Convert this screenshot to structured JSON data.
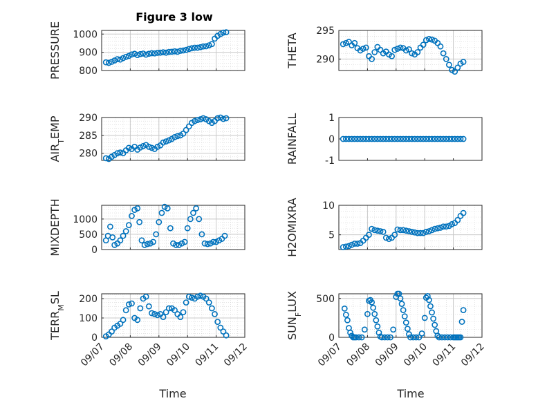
{
  "figure": {
    "title": "Figure 3 low",
    "xlabel": "Time"
  },
  "colors": {
    "marker": "#0072BD",
    "axis": "#262626",
    "grid": "#c8c8c8"
  },
  "chart_data": [
    {
      "type": "scatter",
      "ylabel": "PRESSURE",
      "ylim": [
        800,
        1020
      ],
      "yticks": [
        800,
        900,
        1000
      ],
      "xlim": [
        0,
        5
      ],
      "grid": true,
      "show_xticks": false,
      "title": "Figure 3 low",
      "x": [
        0.15,
        0.25,
        0.35,
        0.45,
        0.55,
        0.65,
        0.75,
        0.85,
        0.95,
        1.05,
        1.15,
        1.25,
        1.35,
        1.45,
        1.55,
        1.65,
        1.75,
        1.85,
        1.95,
        2.05,
        2.15,
        2.25,
        2.35,
        2.45,
        2.55,
        2.65,
        2.75,
        2.85,
        2.95,
        3.05,
        3.15,
        3.25,
        3.35,
        3.45,
        3.55,
        3.65,
        3.75,
        3.85,
        3.95,
        4.05,
        4.15,
        4.25,
        4.35
      ],
      "y": [
        845,
        842,
        848,
        855,
        862,
        860,
        868,
        875,
        880,
        888,
        892,
        885,
        890,
        893,
        887,
        892,
        895,
        894,
        897,
        898,
        900,
        898,
        902,
        903,
        905,
        903,
        908,
        910,
        913,
        918,
        922,
        925,
        925,
        928,
        932,
        933,
        938,
        945,
        975,
        990,
        1000,
        1008,
        1010
      ]
    },
    {
      "type": "scatter",
      "ylabel": "THETA",
      "ylim": [
        288,
        295
      ],
      "yticks": [
        290,
        295
      ],
      "xlim": [
        0,
        5
      ],
      "grid": true,
      "show_xticks": false,
      "x": [
        0.15,
        0.25,
        0.35,
        0.45,
        0.55,
        0.65,
        0.75,
        0.85,
        0.95,
        1.05,
        1.15,
        1.25,
        1.35,
        1.45,
        1.55,
        1.65,
        1.75,
        1.85,
        1.95,
        2.05,
        2.15,
        2.25,
        2.35,
        2.45,
        2.55,
        2.65,
        2.75,
        2.85,
        2.95,
        3.05,
        3.15,
        3.25,
        3.35,
        3.45,
        3.55,
        3.65,
        3.75,
        3.85,
        3.95,
        4.05,
        4.15,
        4.25,
        4.35
      ],
      "y": [
        292.6,
        292.8,
        293.0,
        292.4,
        292.8,
        291.9,
        291.5,
        291.8,
        292.0,
        290.5,
        290.0,
        291.2,
        292.1,
        291.6,
        291.0,
        291.3,
        290.8,
        290.5,
        291.6,
        291.8,
        292.0,
        291.9,
        291.5,
        291.7,
        291.0,
        290.8,
        291.2,
        292.0,
        292.5,
        293.3,
        293.5,
        293.4,
        293.2,
        292.8,
        292.2,
        291.0,
        290.0,
        289.0,
        288.1,
        287.8,
        288.5,
        289.2,
        289.5
      ]
    },
    {
      "type": "scatter",
      "ylabel": "AIR_TEMP",
      "ylim": [
        278,
        290
      ],
      "yticks": [
        280,
        285,
        290
      ],
      "xlim": [
        0,
        5
      ],
      "grid": true,
      "show_xticks": false,
      "x": [
        0.15,
        0.25,
        0.35,
        0.45,
        0.55,
        0.65,
        0.75,
        0.85,
        0.95,
        1.05,
        1.15,
        1.25,
        1.35,
        1.45,
        1.55,
        1.65,
        1.75,
        1.85,
        1.95,
        2.05,
        2.15,
        2.25,
        2.35,
        2.45,
        2.55,
        2.65,
        2.75,
        2.85,
        2.95,
        3.05,
        3.15,
        3.25,
        3.35,
        3.45,
        3.55,
        3.65,
        3.75,
        3.85,
        3.95,
        4.05,
        4.15,
        4.25,
        4.35
      ],
      "y": [
        278.6,
        278.4,
        279.0,
        279.5,
        280.0,
        280.2,
        280.0,
        280.8,
        281.5,
        281.2,
        281.8,
        281.0,
        281.6,
        282.0,
        282.3,
        281.8,
        281.5,
        281.2,
        281.8,
        282.2,
        283.0,
        283.3,
        283.6,
        284.0,
        284.5,
        284.8,
        285.0,
        285.5,
        286.5,
        287.5,
        288.5,
        289.0,
        289.3,
        289.5,
        289.8,
        289.5,
        289.0,
        288.5,
        289.0,
        289.8,
        290.0,
        289.6,
        289.8
      ]
    },
    {
      "type": "scatter",
      "ylabel": "RAINFALL",
      "ylim": [
        -1,
        1
      ],
      "yticks": [
        -1,
        0,
        1
      ],
      "xlim": [
        0,
        5
      ],
      "grid": false,
      "show_xticks": false,
      "x": [
        0.15,
        0.25,
        0.35,
        0.45,
        0.55,
        0.65,
        0.75,
        0.85,
        0.95,
        1.05,
        1.15,
        1.25,
        1.35,
        1.45,
        1.55,
        1.65,
        1.75,
        1.85,
        1.95,
        2.05,
        2.15,
        2.25,
        2.35,
        2.45,
        2.55,
        2.65,
        2.75,
        2.85,
        2.95,
        3.05,
        3.15,
        3.25,
        3.35,
        3.45,
        3.55,
        3.65,
        3.75,
        3.85,
        3.95,
        4.05,
        4.15,
        4.25,
        4.35
      ],
      "y": [
        0,
        0,
        0,
        0,
        0,
        0,
        0,
        0,
        0,
        0,
        0,
        0,
        0,
        0,
        0,
        0,
        0,
        0,
        0,
        0,
        0,
        0,
        0,
        0,
        0,
        0,
        0,
        0,
        0,
        0,
        0,
        0,
        0,
        0,
        0,
        0,
        0,
        0,
        0,
        0,
        0,
        0,
        0
      ]
    },
    {
      "type": "scatter",
      "ylabel": "MIXDEPTH",
      "ylim": [
        0,
        1450
      ],
      "yticks": [
        0,
        500,
        1000
      ],
      "xlim": [
        0,
        5
      ],
      "grid": true,
      "show_xticks": false,
      "x": [
        0.15,
        0.22,
        0.3,
        0.38,
        0.45,
        0.55,
        0.65,
        0.75,
        0.85,
        0.95,
        1.05,
        1.15,
        1.25,
        1.32,
        1.4,
        1.5,
        1.6,
        1.7,
        1.8,
        1.9,
        2.0,
        2.1,
        2.2,
        2.3,
        2.4,
        2.5,
        2.6,
        2.7,
        2.8,
        2.9,
        3.0,
        3.1,
        3.2,
        3.3,
        3.4,
        3.5,
        3.6,
        3.7,
        3.8,
        3.9,
        4.0,
        4.1,
        4.2,
        4.3
      ],
      "y": [
        300,
        450,
        750,
        400,
        150,
        200,
        300,
        450,
        600,
        800,
        1100,
        1300,
        1350,
        900,
        300,
        150,
        180,
        200,
        250,
        500,
        900,
        1200,
        1400,
        1350,
        700,
        200,
        150,
        150,
        200,
        250,
        700,
        1000,
        1200,
        1350,
        1000,
        500,
        200,
        180,
        200,
        250,
        250,
        300,
        350,
        450
      ]
    },
    {
      "type": "scatter",
      "ylabel": "H2OMIXRA",
      "ylim": [
        2.5,
        10
      ],
      "yticks": [
        5,
        10
      ],
      "xlim": [
        0,
        5
      ],
      "grid": true,
      "show_xticks": false,
      "x": [
        0.15,
        0.25,
        0.35,
        0.45,
        0.55,
        0.65,
        0.75,
        0.85,
        0.95,
        1.05,
        1.15,
        1.25,
        1.35,
        1.45,
        1.55,
        1.65,
        1.75,
        1.85,
        1.95,
        2.05,
        2.15,
        2.25,
        2.35,
        2.45,
        2.55,
        2.65,
        2.75,
        2.85,
        2.95,
        3.05,
        3.15,
        3.25,
        3.35,
        3.45,
        3.55,
        3.65,
        3.75,
        3.85,
        3.95,
        4.05,
        4.15,
        4.25,
        4.35
      ],
      "y": [
        2.9,
        3.0,
        3.1,
        3.3,
        3.5,
        3.5,
        3.6,
        4.0,
        4.5,
        5.0,
        6.0,
        5.8,
        5.7,
        5.6,
        5.5,
        4.5,
        4.3,
        4.5,
        5.0,
        5.9,
        5.8,
        5.8,
        5.7,
        5.6,
        5.5,
        5.4,
        5.3,
        5.3,
        5.3,
        5.5,
        5.6,
        5.8,
        6.0,
        6.1,
        6.2,
        6.4,
        6.4,
        6.5,
        6.8,
        7.0,
        7.5,
        8.2,
        8.7
      ]
    },
    {
      "type": "scatter",
      "ylabel": "TERR_MSL",
      "ylim": [
        0,
        225
      ],
      "yticks": [
        0,
        100,
        200
      ],
      "xlim": [
        0,
        5
      ],
      "grid": true,
      "show_xticks": true,
      "xticklabels": [
        "09/07",
        "09/08",
        "09/09",
        "09/10",
        "09/11",
        "09/12"
      ],
      "x": [
        0.15,
        0.25,
        0.35,
        0.45,
        0.55,
        0.65,
        0.75,
        0.85,
        0.95,
        1.05,
        1.15,
        1.25,
        1.35,
        1.45,
        1.55,
        1.65,
        1.75,
        1.85,
        1.95,
        2.05,
        2.15,
        2.25,
        2.35,
        2.45,
        2.55,
        2.65,
        2.75,
        2.85,
        2.95,
        3.05,
        3.15,
        3.25,
        3.35,
        3.45,
        3.55,
        3.65,
        3.75,
        3.85,
        3.95,
        4.05,
        4.15,
        4.25,
        4.35
      ],
      "y": [
        5,
        15,
        30,
        50,
        60,
        70,
        90,
        140,
        170,
        175,
        100,
        90,
        150,
        200,
        210,
        160,
        125,
        120,
        115,
        120,
        105,
        130,
        150,
        150,
        140,
        120,
        105,
        130,
        180,
        210,
        205,
        200,
        210,
        215,
        210,
        200,
        180,
        150,
        120,
        80,
        50,
        30,
        10
      ]
    },
    {
      "type": "scatter",
      "ylabel": "SUN_FLUX",
      "ylim": [
        0,
        560
      ],
      "yticks": [
        0,
        500
      ],
      "xlim": [
        0,
        5
      ],
      "grid": true,
      "show_xticks": true,
      "xticklabels": [
        "09/07",
        "09/08",
        "09/09",
        "09/10",
        "09/11",
        "09/12"
      ],
      "x": [
        0.2,
        0.25,
        0.3,
        0.35,
        0.4,
        0.45,
        0.5,
        0.55,
        0.6,
        0.7,
        0.8,
        0.9,
        1.0,
        1.05,
        1.1,
        1.15,
        1.2,
        1.25,
        1.3,
        1.35,
        1.4,
        1.45,
        1.5,
        1.6,
        1.7,
        1.8,
        1.9,
        2.0,
        2.05,
        2.1,
        2.15,
        2.2,
        2.25,
        2.3,
        2.35,
        2.4,
        2.45,
        2.5,
        2.6,
        2.7,
        2.8,
        2.9,
        3.0,
        3.05,
        3.1,
        3.15,
        3.2,
        3.25,
        3.3,
        3.35,
        3.4,
        3.45,
        3.5,
        3.6,
        3.7,
        3.8,
        3.9,
        4.0,
        4.05,
        4.1,
        4.15,
        4.2,
        4.25,
        4.3,
        4.35
      ],
      "y": [
        370,
        290,
        220,
        120,
        60,
        20,
        0,
        0,
        0,
        0,
        0,
        100,
        300,
        470,
        480,
        450,
        380,
        300,
        220,
        140,
        60,
        10,
        0,
        0,
        0,
        0,
        100,
        520,
        560,
        560,
        500,
        430,
        350,
        270,
        190,
        110,
        40,
        0,
        0,
        0,
        0,
        50,
        250,
        510,
        530,
        480,
        400,
        320,
        240,
        160,
        80,
        20,
        0,
        0,
        0,
        0,
        0,
        0,
        0,
        0,
        0,
        0,
        0,
        200,
        350
      ]
    }
  ]
}
